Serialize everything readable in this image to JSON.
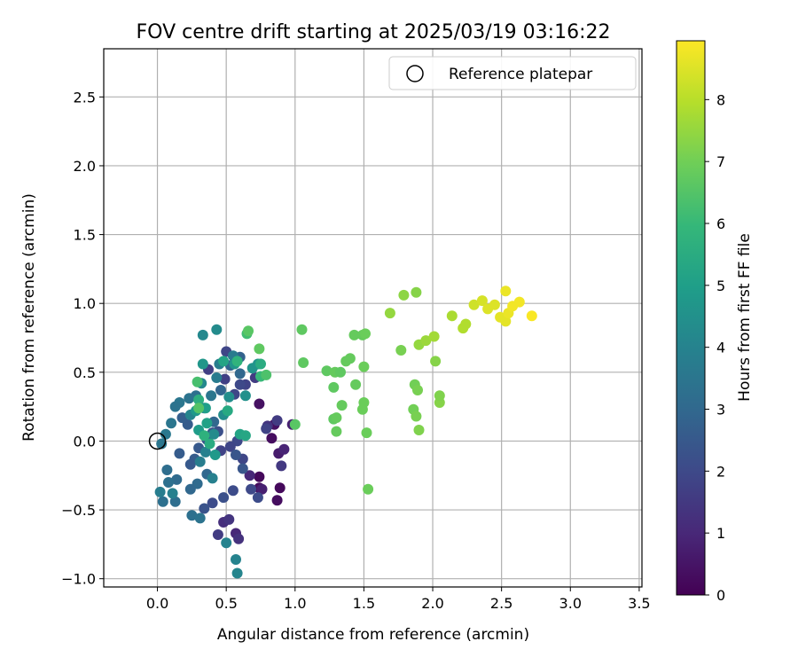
{
  "chart_data": {
    "type": "scatter",
    "title": "FOV centre drift starting at 2025/03/19 03:16:22",
    "xlabel": "Angular distance from reference (arcmin)",
    "ylabel": "Rotation from reference (arcmin)",
    "xlim": [
      -0.39,
      3.52
    ],
    "ylim": [
      -1.06,
      2.85
    ],
    "xticks": [
      "0.0",
      "0.5",
      "1.0",
      "1.5",
      "2.0",
      "2.5",
      "3.0",
      "3.5"
    ],
    "xtick_values": [
      0,
      0.5,
      1,
      1.5,
      2,
      2.5,
      3,
      3.5
    ],
    "yticks": [
      "−1.0",
      "−0.5",
      "0.0",
      "0.5",
      "1.0",
      "1.5",
      "2.0",
      "2.5"
    ],
    "ytick_values": [
      -1,
      -0.5,
      0,
      0.5,
      1,
      1.5,
      2,
      2.5
    ],
    "grid": true,
    "legend": {
      "position": "top-right",
      "label": "Reference platepar",
      "marker": "hollow-circle"
    },
    "reference_point": {
      "x": 0.0,
      "y": 0.0
    },
    "colorbar": {
      "label": "Hours from first FF file",
      "colormap": "viridis",
      "range": [
        0,
        8.95
      ],
      "ticks": [
        "0",
        "1",
        "2",
        "3",
        "4",
        "5",
        "6",
        "7",
        "8"
      ],
      "tick_values": [
        0,
        1,
        2,
        3,
        4,
        5,
        6,
        7,
        8
      ]
    },
    "colormap_stops": [
      "#440154",
      "#482878",
      "#3e4989",
      "#31688e",
      "#26828e",
      "#1f9e89",
      "#35b779",
      "#6ece58",
      "#b5de2b",
      "#fde725"
    ],
    "points": [
      {
        "x": 0.74,
        "y": -0.26,
        "c": 0.2
      },
      {
        "x": 0.87,
        "y": -0.43,
        "c": 0.3
      },
      {
        "x": 0.89,
        "y": -0.34,
        "c": 0.2
      },
      {
        "x": 0.74,
        "y": -0.34,
        "c": 0.3
      },
      {
        "x": 0.85,
        "y": 0.12,
        "c": 0.4
      },
      {
        "x": 0.83,
        "y": 0.02,
        "c": 0.3
      },
      {
        "x": 0.74,
        "y": 0.27,
        "c": 0.4
      },
      {
        "x": 0.98,
        "y": 0.12,
        "c": 0.8
      },
      {
        "x": 0.88,
        "y": -0.09,
        "c": 0.7
      },
      {
        "x": 0.92,
        "y": -0.06,
        "c": 0.9
      },
      {
        "x": 0.76,
        "y": -0.35,
        "c": 0.8
      },
      {
        "x": 0.67,
        "y": -0.25,
        "c": 1.0
      },
      {
        "x": 0.57,
        "y": -0.67,
        "c": 1.0
      },
      {
        "x": 0.59,
        "y": -0.71,
        "c": 1.3
      },
      {
        "x": 0.48,
        "y": -0.59,
        "c": 1.2
      },
      {
        "x": 0.52,
        "y": -0.57,
        "c": 1.4
      },
      {
        "x": 0.44,
        "y": -0.68,
        "c": 1.6
      },
      {
        "x": 0.9,
        "y": -0.18,
        "c": 1.5
      },
      {
        "x": 0.8,
        "y": 0.11,
        "c": 1.4
      },
      {
        "x": 0.87,
        "y": 0.15,
        "c": 1.6
      },
      {
        "x": 0.79,
        "y": 0.09,
        "c": 1.8
      },
      {
        "x": 0.71,
        "y": 0.46,
        "c": 1.6
      },
      {
        "x": 0.64,
        "y": 0.41,
        "c": 1.8
      },
      {
        "x": 0.56,
        "y": 0.34,
        "c": 1.9
      },
      {
        "x": 0.49,
        "y": 0.45,
        "c": 1.7
      },
      {
        "x": 0.37,
        "y": 0.52,
        "c": 1.7
      },
      {
        "x": 0.5,
        "y": 0.65,
        "c": 1.9
      },
      {
        "x": 0.6,
        "y": 0.41,
        "c": 2.0
      },
      {
        "x": 0.58,
        "y": 0.0,
        "c": 2.0
      },
      {
        "x": 0.53,
        "y": -0.04,
        "c": 1.9
      },
      {
        "x": 0.46,
        "y": -0.07,
        "c": 1.8
      },
      {
        "x": 0.62,
        "y": -0.13,
        "c": 1.9
      },
      {
        "x": 0.68,
        "y": -0.35,
        "c": 2.0
      },
      {
        "x": 0.73,
        "y": -0.41,
        "c": 2.1
      },
      {
        "x": 0.55,
        "y": -0.36,
        "c": 2.1
      },
      {
        "x": 0.48,
        "y": -0.41,
        "c": 2.2
      },
      {
        "x": 0.4,
        "y": -0.45,
        "c": 2.1
      },
      {
        "x": 0.34,
        "y": -0.49,
        "c": 2.3
      },
      {
        "x": 0.62,
        "y": -0.2,
        "c": 2.4
      },
      {
        "x": 0.57,
        "y": -0.1,
        "c": 2.4
      },
      {
        "x": 0.44,
        "y": 0.07,
        "c": 2.2
      },
      {
        "x": 0.4,
        "y": 0.06,
        "c": 2.4
      },
      {
        "x": 0.36,
        "y": 0.01,
        "c": 2.3
      },
      {
        "x": 0.3,
        "y": -0.05,
        "c": 2.5
      },
      {
        "x": 0.27,
        "y": -0.13,
        "c": 2.6
      },
      {
        "x": 0.24,
        "y": -0.17,
        "c": 2.5
      },
      {
        "x": 0.16,
        "y": -0.09,
        "c": 2.6
      },
      {
        "x": 0.22,
        "y": 0.12,
        "c": 2.6
      },
      {
        "x": 0.18,
        "y": 0.17,
        "c": 2.7
      },
      {
        "x": 0.6,
        "y": 0.61,
        "c": 2.8
      },
      {
        "x": 0.53,
        "y": 0.55,
        "c": 2.9
      },
      {
        "x": 0.6,
        "y": 0.49,
        "c": 3.0
      },
      {
        "x": 0.46,
        "y": 0.37,
        "c": 2.9
      },
      {
        "x": 0.41,
        "y": 0.14,
        "c": 3.0
      },
      {
        "x": 0.36,
        "y": -0.24,
        "c": 3.0
      },
      {
        "x": 0.29,
        "y": -0.31,
        "c": 3.1
      },
      {
        "x": 0.24,
        "y": -0.35,
        "c": 3.0
      },
      {
        "x": 0.14,
        "y": -0.28,
        "c": 3.1
      },
      {
        "x": 0.07,
        "y": -0.21,
        "c": 3.2
      },
      {
        "x": 0.08,
        "y": -0.3,
        "c": 3.3
      },
      {
        "x": 0.04,
        "y": -0.44,
        "c": 3.3
      },
      {
        "x": 0.13,
        "y": -0.44,
        "c": 3.2
      },
      {
        "x": 0.25,
        "y": -0.54,
        "c": 3.3
      },
      {
        "x": 0.31,
        "y": -0.56,
        "c": 3.4
      },
      {
        "x": 0.28,
        "y": 0.33,
        "c": 3.3
      },
      {
        "x": 0.23,
        "y": 0.31,
        "c": 3.4
      },
      {
        "x": 0.16,
        "y": 0.28,
        "c": 3.5
      },
      {
        "x": 0.13,
        "y": 0.25,
        "c": 3.4
      },
      {
        "x": 0.03,
        "y": -0.02,
        "c": 3.5
      },
      {
        "x": 0.06,
        "y": 0.05,
        "c": 3.6
      },
      {
        "x": 0.1,
        "y": 0.13,
        "c": 3.5
      },
      {
        "x": 0.34,
        "y": 0.24,
        "c": 3.6
      },
      {
        "x": 0.39,
        "y": 0.33,
        "c": 3.5
      },
      {
        "x": 0.43,
        "y": 0.46,
        "c": 3.7
      },
      {
        "x": 0.45,
        "y": 0.56,
        "c": 3.8
      },
      {
        "x": 0.55,
        "y": 0.62,
        "c": 3.7
      },
      {
        "x": 0.02,
        "y": -0.37,
        "c": 3.8
      },
      {
        "x": 0.11,
        "y": -0.38,
        "c": 3.9
      },
      {
        "x": 0.31,
        "y": -0.15,
        "c": 3.8
      },
      {
        "x": 0.35,
        "y": -0.08,
        "c": 3.9
      },
      {
        "x": 0.4,
        "y": -0.27,
        "c": 3.9
      },
      {
        "x": 0.5,
        "y": -0.74,
        "c": 4.0
      },
      {
        "x": 0.57,
        "y": -0.86,
        "c": 4.0
      },
      {
        "x": 0.58,
        "y": -0.96,
        "c": 4.1
      },
      {
        "x": 0.24,
        "y": 0.19,
        "c": 4.1
      },
      {
        "x": 0.33,
        "y": 0.77,
        "c": 4.2
      },
      {
        "x": 0.43,
        "y": 0.81,
        "c": 4.3
      },
      {
        "x": 0.32,
        "y": 0.42,
        "c": 4.2
      },
      {
        "x": 0.41,
        "y": 0.05,
        "c": 4.3
      },
      {
        "x": 0.48,
        "y": 0.19,
        "c": 4.4
      },
      {
        "x": 0.52,
        "y": 0.32,
        "c": 4.4
      },
      {
        "x": 0.64,
        "y": 0.33,
        "c": 4.5
      },
      {
        "x": 0.69,
        "y": 0.53,
        "c": 4.6
      },
      {
        "x": 0.73,
        "y": 0.56,
        "c": 4.6
      },
      {
        "x": 0.56,
        "y": 0.56,
        "c": 4.7
      },
      {
        "x": 0.33,
        "y": 0.56,
        "c": 4.7
      },
      {
        "x": 0.42,
        "y": -0.1,
        "c": 4.8
      },
      {
        "x": 0.28,
        "y": 0.22,
        "c": 4.8
      },
      {
        "x": 0.3,
        "y": 0.08,
        "c": 4.9
      },
      {
        "x": 0.35,
        "y": 0.24,
        "c": 5.0
      },
      {
        "x": 0.36,
        "y": 0.13,
        "c": 5.1
      },
      {
        "x": 0.48,
        "y": 0.58,
        "c": 5.2
      },
      {
        "x": 0.6,
        "y": 0.05,
        "c": 5.2
      },
      {
        "x": 0.64,
        "y": 0.04,
        "c": 5.3
      },
      {
        "x": 0.51,
        "y": 0.22,
        "c": 5.4
      },
      {
        "x": 0.75,
        "y": 0.56,
        "c": 5.5
      },
      {
        "x": 0.38,
        "y": -0.02,
        "c": 5.5
      },
      {
        "x": 0.3,
        "y": 0.3,
        "c": 5.6
      },
      {
        "x": 0.34,
        "y": 0.04,
        "c": 5.7
      },
      {
        "x": 0.58,
        "y": 0.58,
        "c": 5.8
      },
      {
        "x": 0.75,
        "y": 0.47,
        "c": 6.0
      },
      {
        "x": 0.65,
        "y": 0.78,
        "c": 6.2
      },
      {
        "x": 0.29,
        "y": 0.43,
        "c": 6.3
      },
      {
        "x": 0.79,
        "y": 0.48,
        "c": 6.4
      },
      {
        "x": 0.3,
        "y": 0.24,
        "c": 6.5
      },
      {
        "x": 0.66,
        "y": 0.8,
        "c": 6.6
      },
      {
        "x": 1.0,
        "y": 0.12,
        "c": 6.6
      },
      {
        "x": 0.74,
        "y": 0.67,
        "c": 6.7
      },
      {
        "x": 1.05,
        "y": 0.81,
        "c": 6.7
      },
      {
        "x": 1.06,
        "y": 0.57,
        "c": 6.7
      },
      {
        "x": 1.23,
        "y": 0.51,
        "c": 6.7
      },
      {
        "x": 1.28,
        "y": 0.39,
        "c": 6.7
      },
      {
        "x": 1.29,
        "y": 0.5,
        "c": 6.8
      },
      {
        "x": 1.33,
        "y": 0.5,
        "c": 6.7
      },
      {
        "x": 1.37,
        "y": 0.58,
        "c": 6.8
      },
      {
        "x": 1.4,
        "y": 0.6,
        "c": 6.8
      },
      {
        "x": 1.43,
        "y": 0.77,
        "c": 6.8
      },
      {
        "x": 1.49,
        "y": 0.77,
        "c": 6.8
      },
      {
        "x": 1.51,
        "y": 0.78,
        "c": 6.9
      },
      {
        "x": 1.44,
        "y": 0.41,
        "c": 6.8
      },
      {
        "x": 1.5,
        "y": 0.54,
        "c": 6.9
      },
      {
        "x": 1.34,
        "y": 0.26,
        "c": 6.8
      },
      {
        "x": 1.28,
        "y": 0.16,
        "c": 6.7
      },
      {
        "x": 1.3,
        "y": 0.17,
        "c": 6.8
      },
      {
        "x": 1.3,
        "y": 0.07,
        "c": 6.8
      },
      {
        "x": 1.49,
        "y": 0.23,
        "c": 6.9
      },
      {
        "x": 1.5,
        "y": 0.28,
        "c": 6.9
      },
      {
        "x": 1.52,
        "y": 0.06,
        "c": 6.9
      },
      {
        "x": 1.53,
        "y": -0.35,
        "c": 6.9
      },
      {
        "x": 1.86,
        "y": 0.23,
        "c": 7.0
      },
      {
        "x": 1.87,
        "y": 0.41,
        "c": 7.0
      },
      {
        "x": 1.89,
        "y": 0.37,
        "c": 7.1
      },
      {
        "x": 1.88,
        "y": 0.18,
        "c": 7.1
      },
      {
        "x": 1.9,
        "y": 0.08,
        "c": 7.2
      },
      {
        "x": 2.02,
        "y": 0.58,
        "c": 7.3
      },
      {
        "x": 2.05,
        "y": 0.28,
        "c": 7.3
      },
      {
        "x": 2.05,
        "y": 0.33,
        "c": 7.2
      },
      {
        "x": 1.77,
        "y": 0.66,
        "c": 7.1
      },
      {
        "x": 1.88,
        "y": 1.08,
        "c": 7.3
      },
      {
        "x": 1.79,
        "y": 1.06,
        "c": 7.4
      },
      {
        "x": 1.69,
        "y": 0.93,
        "c": 7.5
      },
      {
        "x": 1.9,
        "y": 0.7,
        "c": 7.5
      },
      {
        "x": 1.95,
        "y": 0.73,
        "c": 7.6
      },
      {
        "x": 2.01,
        "y": 0.76,
        "c": 7.7
      },
      {
        "x": 2.14,
        "y": 0.91,
        "c": 7.8
      },
      {
        "x": 2.22,
        "y": 0.82,
        "c": 7.9
      },
      {
        "x": 2.24,
        "y": 0.85,
        "c": 7.9
      },
      {
        "x": 2.3,
        "y": 0.99,
        "c": 8.3
      },
      {
        "x": 2.36,
        "y": 1.02,
        "c": 8.4
      },
      {
        "x": 2.4,
        "y": 0.96,
        "c": 8.5
      },
      {
        "x": 2.45,
        "y": 0.99,
        "c": 8.5
      },
      {
        "x": 2.49,
        "y": 0.9,
        "c": 8.6
      },
      {
        "x": 2.53,
        "y": 0.87,
        "c": 8.6
      },
      {
        "x": 2.55,
        "y": 0.93,
        "c": 8.7
      },
      {
        "x": 2.53,
        "y": 1.09,
        "c": 8.7
      },
      {
        "x": 2.58,
        "y": 0.98,
        "c": 8.8
      },
      {
        "x": 2.63,
        "y": 1.01,
        "c": 8.8
      },
      {
        "x": 2.72,
        "y": 0.91,
        "c": 8.9
      }
    ]
  }
}
